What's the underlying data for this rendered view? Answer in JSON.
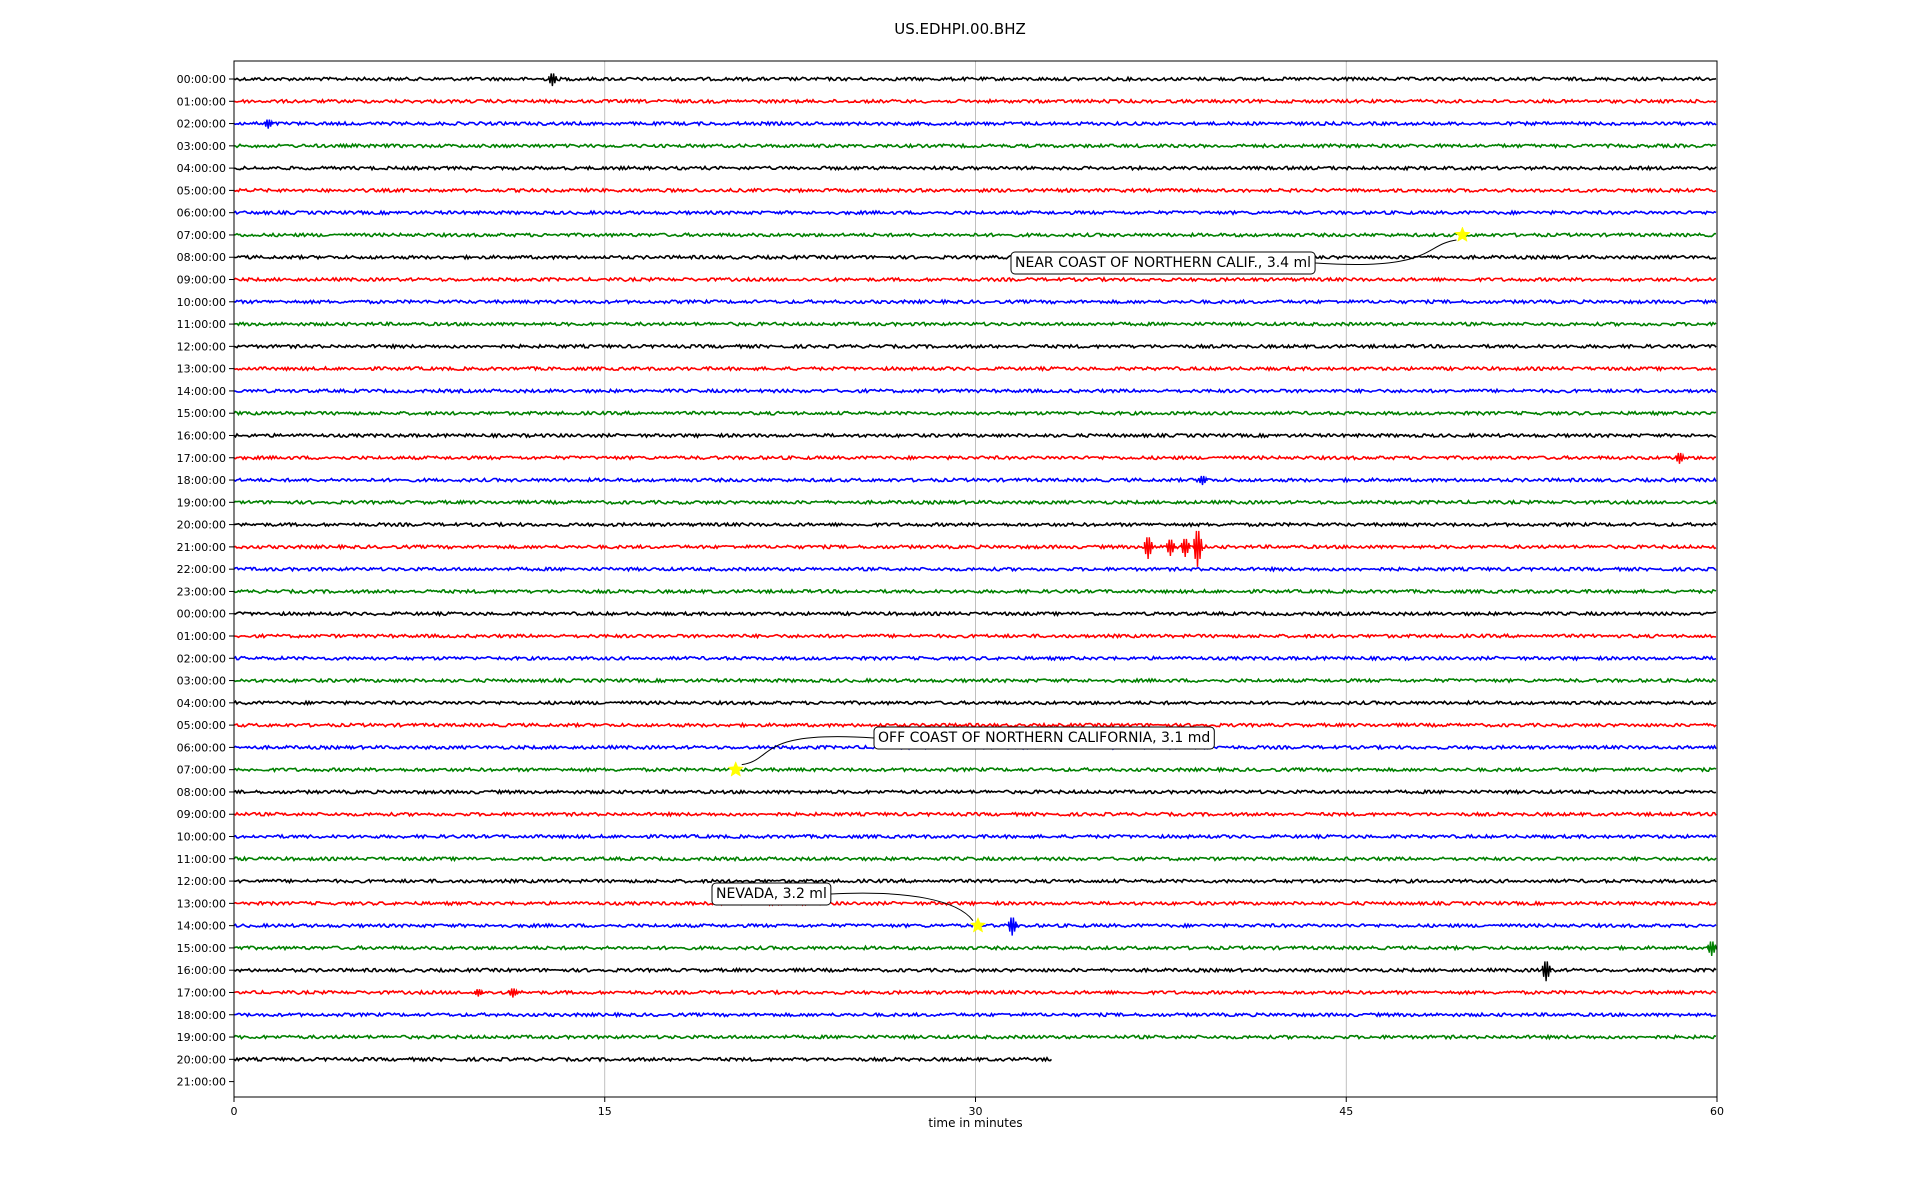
{
  "chart_data": {
    "type": "line",
    "title": "US.EDHPI.00.BHZ",
    "xlabel": "time in minutes",
    "ylabel": "",
    "xlim": [
      0,
      60
    ],
    "x_ticks": [
      0,
      15,
      30,
      45,
      60
    ],
    "x_tick_labels": [
      "0",
      "15",
      "30",
      "45",
      "60"
    ],
    "grid": "vertical lines at x ticks",
    "trace_colors": [
      "#000000",
      "#ff0000",
      "#0000ff",
      "#008000"
    ],
    "row_labels": [
      "00:00:00",
      "01:00:00",
      "02:00:00",
      "03:00:00",
      "04:00:00",
      "05:00:00",
      "06:00:00",
      "07:00:00",
      "08:00:00",
      "09:00:00",
      "10:00:00",
      "11:00:00",
      "12:00:00",
      "13:00:00",
      "14:00:00",
      "15:00:00",
      "16:00:00",
      "17:00:00",
      "18:00:00",
      "19:00:00",
      "20:00:00",
      "21:00:00",
      "22:00:00",
      "23:00:00",
      "00:00:00",
      "01:00:00",
      "02:00:00",
      "03:00:00",
      "04:00:00",
      "05:00:00",
      "06:00:00",
      "07:00:00",
      "08:00:00",
      "09:00:00",
      "10:00:00",
      "11:00:00",
      "12:00:00",
      "13:00:00",
      "14:00:00",
      "15:00:00",
      "16:00:00",
      "17:00:00",
      "18:00:00",
      "19:00:00",
      "20:00:00",
      "21:00:00"
    ],
    "traces_end_minute": [
      60,
      60,
      60,
      60,
      60,
      60,
      60,
      60,
      60,
      60,
      60,
      60,
      60,
      60,
      60,
      60,
      60,
      60,
      60,
      60,
      60,
      60,
      60,
      60,
      60,
      60,
      60,
      60,
      60,
      60,
      60,
      60,
      60,
      60,
      60,
      60,
      60,
      60,
      60,
      60,
      60,
      60,
      60,
      60,
      33.1,
      0
    ],
    "signals": [
      {
        "row": 0,
        "minute": 12.9,
        "amp": 7
      },
      {
        "row": 2,
        "minute": 1.4,
        "amp": 5
      },
      {
        "row": 17,
        "minute": 58.5,
        "amp": 6
      },
      {
        "row": 18,
        "minute": 39.2,
        "amp": 5
      },
      {
        "row": 21,
        "minute": 37.0,
        "amp": 12
      },
      {
        "row": 21,
        "minute": 37.9,
        "amp": 9
      },
      {
        "row": 21,
        "minute": 38.5,
        "amp": 10
      },
      {
        "row": 21,
        "minute": 39.0,
        "amp": 20
      },
      {
        "row": 38,
        "minute": 31.5,
        "amp": 10
      },
      {
        "row": 39,
        "minute": 59.8,
        "amp": 8
      },
      {
        "row": 40,
        "minute": 53.1,
        "amp": 11
      },
      {
        "row": 41,
        "minute": 11.3,
        "amp": 5
      },
      {
        "row": 41,
        "minute": 9.9,
        "amp": 4
      }
    ],
    "events": [
      {
        "label": "NEAR COAST OF NORTHERN CALIF., 3.4 ml",
        "row": 7,
        "minute": 49.7,
        "marker_color": "#ffff00"
      },
      {
        "label": "OFF COAST OF NORTHERN CALIFORNIA, 3.1 md",
        "row": 31,
        "minute": 20.3,
        "marker_color": "#ffff00"
      },
      {
        "label": "NEVADA, 3.2 ml",
        "row": 38,
        "minute": 30.1,
        "marker_color": "#ffff00"
      }
    ]
  }
}
